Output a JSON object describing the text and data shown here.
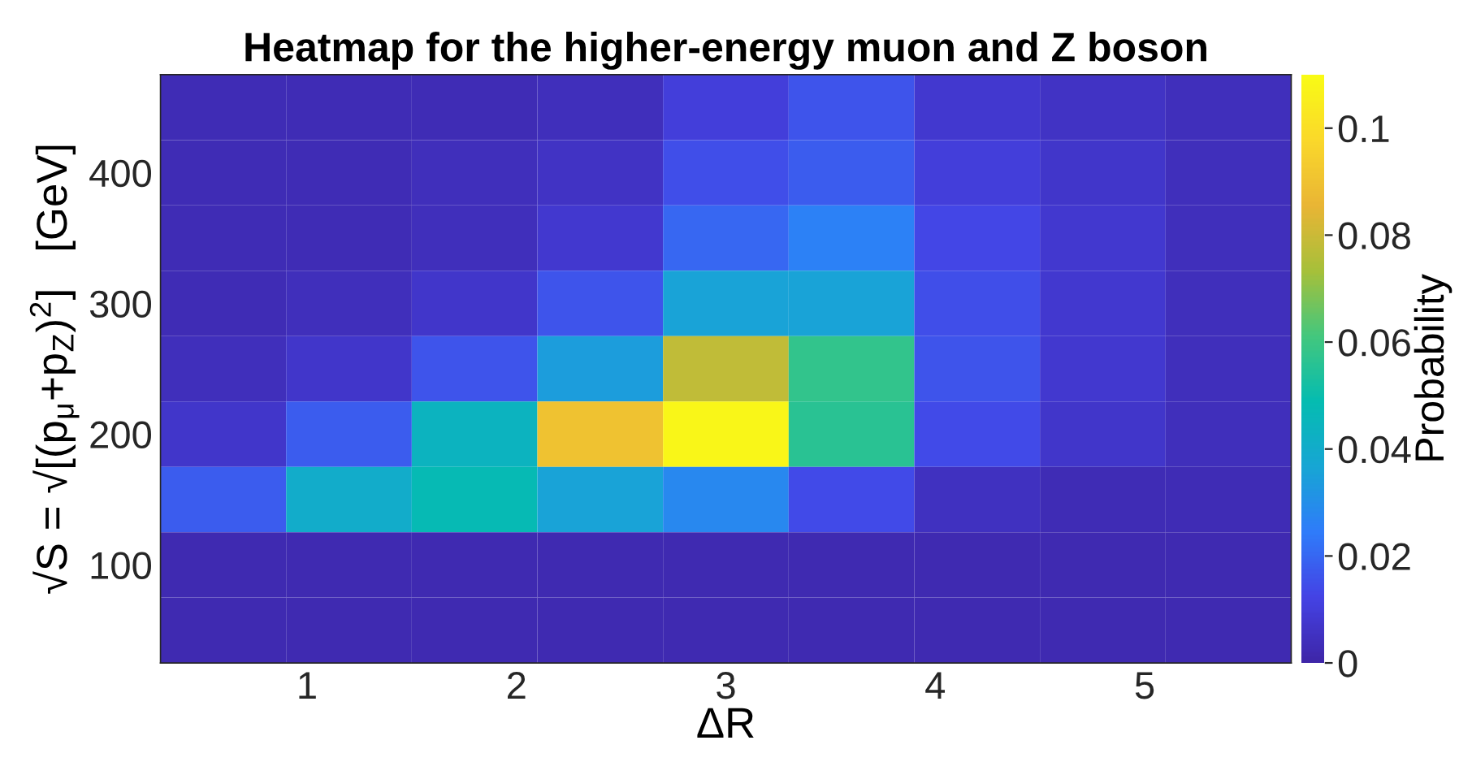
{
  "chart_data": {
    "type": "heatmap",
    "title": "Heatmap for the higher-energy muon and Z boson",
    "xlabel": "ΔR",
    "ylabel": "√S = √[(p$_{μ}$+p$_{Z}$)$^{2}$]   [GeV]",
    "clabel": "Probability",
    "xlim": [
      0.3,
      5.7
    ],
    "xticks": [
      1,
      2,
      3,
      4,
      5
    ],
    "ylim": [
      25,
      475
    ],
    "yticks": [
      100,
      200,
      300,
      400
    ],
    "clim": [
      0,
      0.11
    ],
    "cticks": [
      0,
      0.02,
      0.04,
      0.06,
      0.08,
      {
        "value": 0.1,
        "label": "0.1"
      }
    ],
    "cells": [
      [
        0.003,
        0.003,
        0.003,
        0.004,
        0.01,
        0.016,
        0.008,
        0.006,
        0.004
      ],
      [
        0.003,
        0.003,
        0.004,
        0.006,
        0.015,
        0.018,
        0.01,
        0.007,
        0.004
      ],
      [
        0.003,
        0.003,
        0.004,
        0.008,
        0.02,
        0.026,
        0.013,
        0.008,
        0.004
      ],
      [
        0.003,
        0.004,
        0.007,
        0.016,
        0.036,
        0.036,
        0.015,
        0.008,
        0.004
      ],
      [
        0.004,
        0.007,
        0.016,
        0.034,
        0.078,
        0.058,
        0.016,
        0.008,
        0.004
      ],
      [
        0.007,
        0.018,
        0.044,
        0.09,
        0.108,
        0.056,
        0.014,
        0.007,
        0.004
      ],
      [
        0.018,
        0.04,
        0.048,
        0.036,
        0.028,
        0.014,
        0.005,
        0.003,
        0.003
      ],
      [
        0.002,
        0.002,
        0.002,
        0.002,
        0.002,
        0.002,
        0.002,
        0.002,
        0.002
      ],
      [
        0.002,
        0.002,
        0.002,
        0.002,
        0.002,
        0.002,
        0.002,
        0.002,
        0.002
      ]
    ]
  }
}
